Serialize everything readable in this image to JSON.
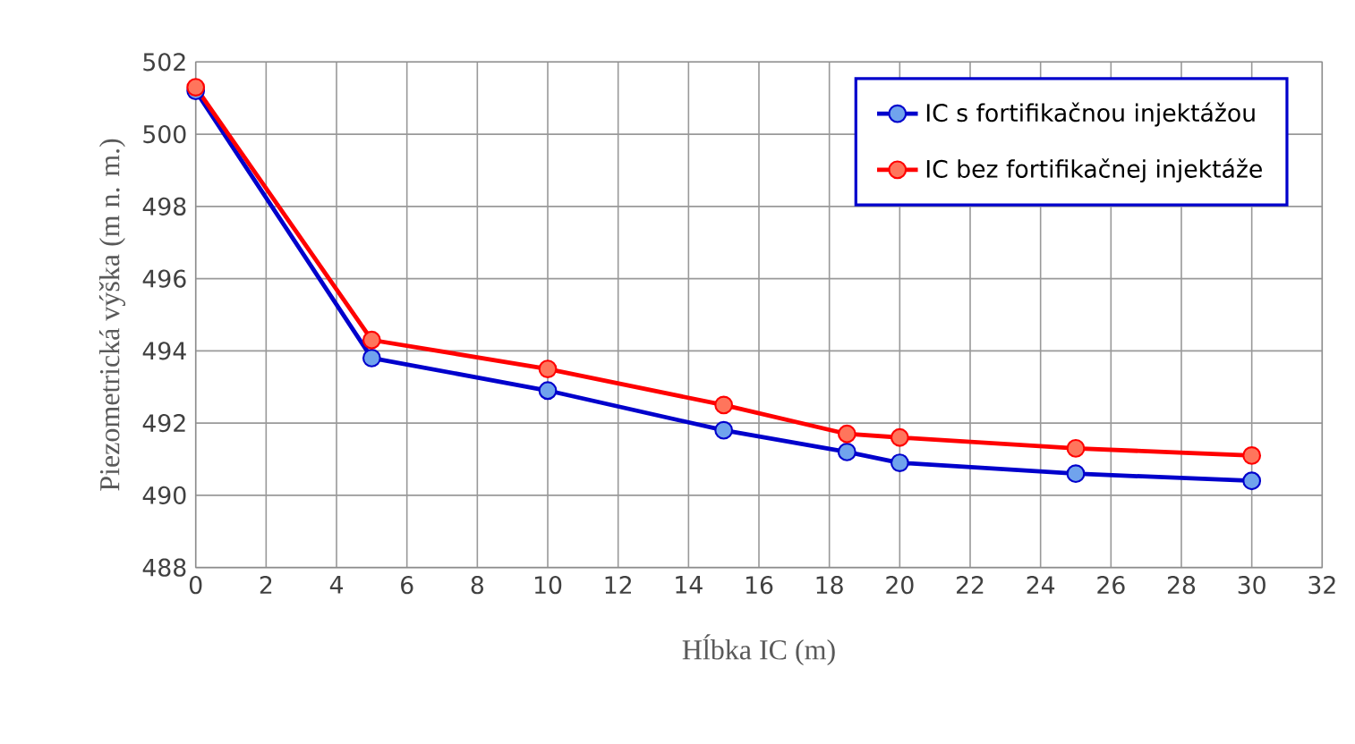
{
  "chart_data": {
    "type": "line",
    "xlabel": "Hĺbka IC (m)",
    "ylabel": "Piezometrická výška (m n. m.)",
    "x": [
      0,
      5,
      10,
      15,
      18.5,
      20,
      25,
      30
    ],
    "series": [
      {
        "name": "IC s fortifikačnou injektážou",
        "color": "#0000cc",
        "values": [
          501.2,
          493.8,
          492.9,
          491.8,
          491.2,
          490.9,
          490.6,
          490.4
        ]
      },
      {
        "name": "IC bez fortifikačnej injektáže",
        "color": "#ff0000",
        "values": [
          501.3,
          494.3,
          493.5,
          492.5,
          491.7,
          491.6,
          491.3,
          491.1
        ]
      }
    ],
    "xlim": [
      0,
      32
    ],
    "xticks": [
      0,
      2,
      4,
      6,
      8,
      10,
      12,
      14,
      16,
      18,
      20,
      22,
      24,
      26,
      28,
      30,
      32
    ],
    "ylim": [
      488,
      502
    ],
    "yticks": [
      488,
      490,
      492,
      494,
      496,
      498,
      500,
      502
    ],
    "grid": true,
    "legend": "top right",
    "marker": "circle",
    "line_style": "solid"
  }
}
